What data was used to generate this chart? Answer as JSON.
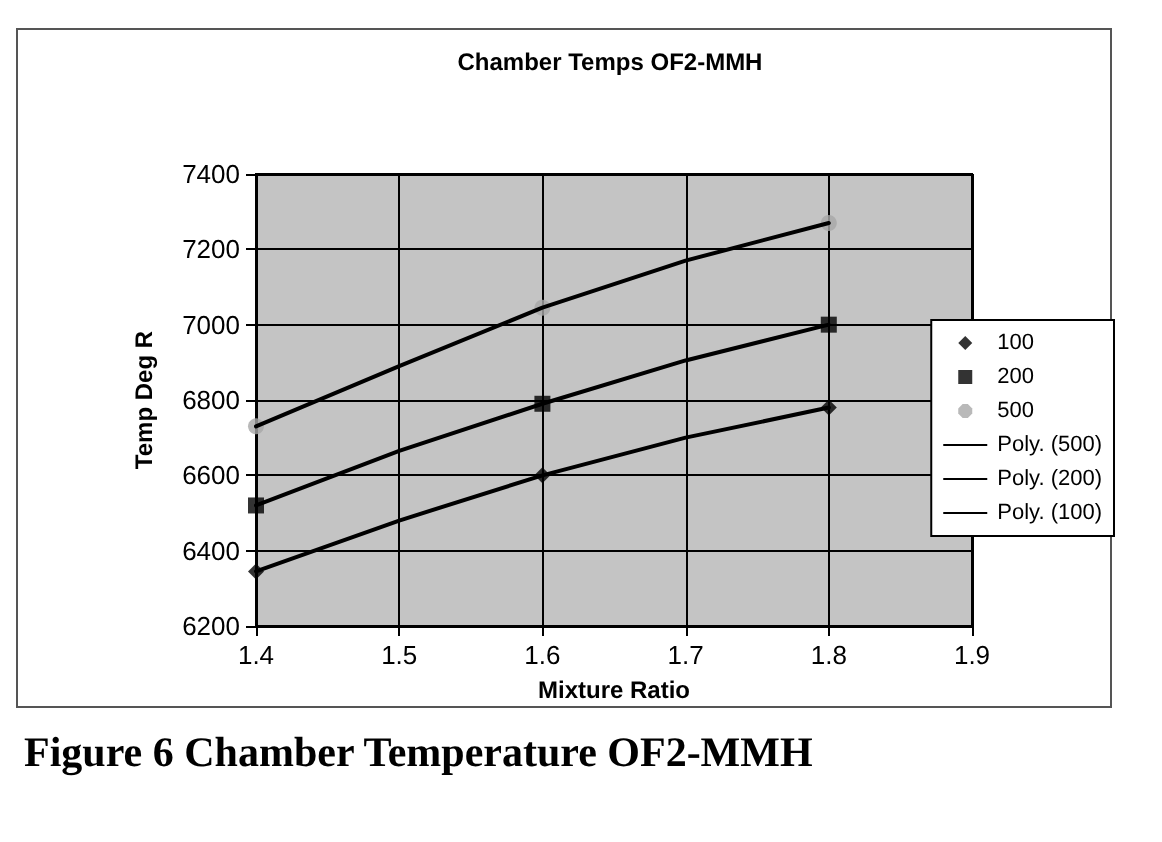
{
  "chart_data": {
    "type": "scatter",
    "title": "Chamber Temps OF2-MMH",
    "xlabel": "Mixture Ratio",
    "ylabel": "Temp Deg R",
    "annotations": [
      "Figure 6 Chamber Temperature OF2-MMH"
    ],
    "x": [
      1.4,
      1.6,
      1.8
    ],
    "series": [
      {
        "name": "100",
        "type": "scatter",
        "marker": "diamond",
        "color": "#000000",
        "values": [
          6345,
          6600,
          6780
        ]
      },
      {
        "name": "200",
        "type": "scatter",
        "marker": "square",
        "color": "#000000",
        "values": [
          6520,
          6790,
          7000
        ]
      },
      {
        "name": "500",
        "type": "scatter",
        "marker": "circle",
        "color": "#a8a8a8",
        "values": [
          6730,
          7045,
          7270
        ]
      },
      {
        "name": "Poly. (500)",
        "type": "line",
        "marker": "none",
        "color": "#000000",
        "x": [
          1.4,
          1.5,
          1.6,
          1.7,
          1.8
        ],
        "values": [
          6730,
          6890,
          7045,
          7170,
          7270
        ]
      },
      {
        "name": "Poly. (200)",
        "type": "line",
        "marker": "none",
        "color": "#000000",
        "x": [
          1.4,
          1.5,
          1.6,
          1.7,
          1.8
        ],
        "values": [
          6520,
          6665,
          6790,
          6905,
          7000
        ]
      },
      {
        "name": "Poly. (100)",
        "type": "line",
        "marker": "none",
        "color": "#000000",
        "x": [
          1.4,
          1.5,
          1.6,
          1.7,
          1.8
        ],
        "values": [
          6345,
          6480,
          6600,
          6700,
          6780
        ]
      }
    ],
    "xlim": [
      1.4,
      1.9
    ],
    "xticks": [
      1.4,
      1.5,
      1.6,
      1.7,
      1.8,
      1.9
    ],
    "ylim": [
      6200,
      7400
    ],
    "yticks": [
      6200,
      6400,
      6600,
      6800,
      7000,
      7200,
      7400
    ],
    "grid": true,
    "legend": "right",
    "line_style": "solid"
  }
}
